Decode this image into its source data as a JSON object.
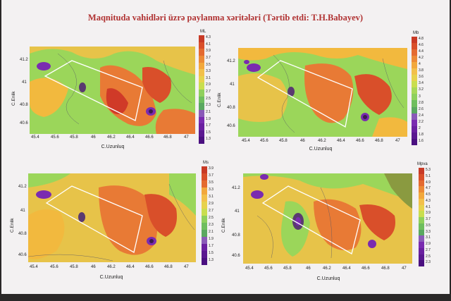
{
  "title": "Maqnituda vahidləri üzrə paylanma xəritələri (Tərtib etdi: T.H.Babayev)",
  "maps": [
    {
      "unit": "ML",
      "ylabel": "C.Enlik",
      "xlabel": "C.Uzunluq",
      "xticks": [
        "45.4",
        "45.6",
        "45.8",
        "46",
        "46.2",
        "46.4",
        "46.6",
        "46.8",
        "47"
      ],
      "yticks": [
        "41.2",
        "41",
        "40.8",
        "40.6"
      ],
      "scale": [
        "4.3",
        "4.1",
        "3.9",
        "3.7",
        "3.5",
        "3.3",
        "3.1",
        "2.9",
        "2.7",
        "2.5",
        "2.3",
        "2.1",
        "1.9",
        "1.7",
        "1.5",
        "1.3"
      ]
    },
    {
      "unit": "Mb",
      "ylabel": "C.Enlik",
      "xlabel": "C.Uzunluq",
      "xticks": [
        "45.4",
        "45.6",
        "45.8",
        "46",
        "46.2",
        "46.4",
        "46.6",
        "46.8",
        "47"
      ],
      "yticks": [
        "41.2",
        "41",
        "40.8",
        "40.6"
      ],
      "scale": [
        "4.8",
        "4.6",
        "4.4",
        "4.2",
        "4",
        "3.8",
        "3.6",
        "3.4",
        "3.2",
        "3",
        "2.8",
        "2.6",
        "2.4",
        "2.2",
        "2",
        "1.8",
        "1.6"
      ]
    },
    {
      "unit": "Ms",
      "ylabel": "C.Enlik",
      "xlabel": "C.Uzunluq",
      "xticks": [
        "45.4",
        "45.6",
        "45.8",
        "46",
        "46.2",
        "46.4",
        "46.6",
        "46.8",
        "47"
      ],
      "yticks": [
        "41.2",
        "41",
        "40.8",
        "40.6"
      ],
      "scale": [
        "3.9",
        "3.7",
        "3.5",
        "3.3",
        "3.1",
        "2.9",
        "2.7",
        "2.5",
        "2.3",
        "2.1",
        "1.9",
        "1.7",
        "1.5",
        "1.3"
      ]
    },
    {
      "unit": "Mpva",
      "ylabel": "C.Enlik",
      "xlabel": "C.Uzunluq",
      "xticks": [
        "45.4",
        "45.6",
        "45.8",
        "46",
        "46.2",
        "46.4",
        "46.6",
        "46.8",
        "47"
      ],
      "yticks": [
        "41.2",
        "41",
        "40.8",
        "40.6"
      ],
      "scale": [
        "5.3",
        "5.1",
        "4.9",
        "4.7",
        "4.5",
        "4.3",
        "4.1",
        "3.9",
        "3.7",
        "3.5",
        "3.3",
        "3.1",
        "2.9",
        "2.7",
        "2.5",
        "2.3"
      ]
    }
  ],
  "colors": {
    "title": "#b03232",
    "high": "#d94f2a",
    "mid": "#f2b93e",
    "low": "#9bd65a",
    "min": "#7a2bb0",
    "polygon": "#ffffff"
  }
}
